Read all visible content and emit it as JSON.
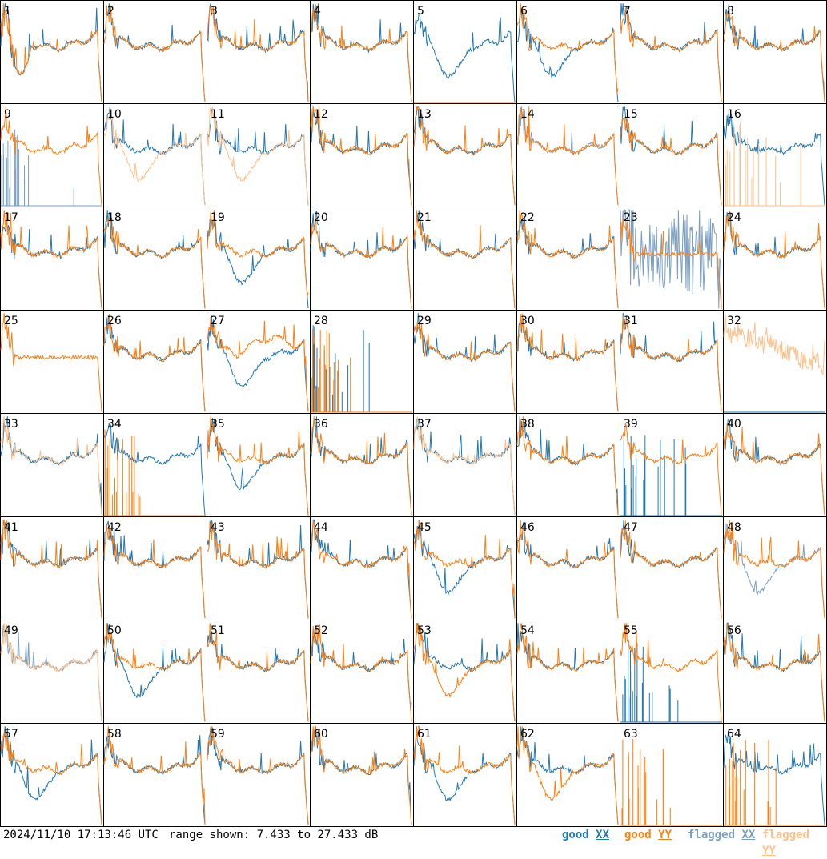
{
  "chart_data": {
    "type": "line",
    "panel_ids": [
      1,
      2,
      3,
      4,
      5,
      6,
      7,
      8,
      9,
      10,
      11,
      12,
      13,
      14,
      15,
      16,
      17,
      18,
      19,
      20,
      21,
      22,
      23,
      24,
      25,
      26,
      27,
      28,
      29,
      30,
      31,
      32,
      33,
      34,
      35,
      36,
      37,
      38,
      39,
      40,
      41,
      42,
      43,
      44,
      45,
      46,
      47,
      48,
      49,
      50,
      51,
      52,
      53,
      54,
      55,
      56,
      57,
      58,
      59,
      60,
      61,
      62,
      63,
      64
    ],
    "range_db": [
      7.433,
      27.433
    ],
    "series": [
      {
        "name": "good XX",
        "color": "#1f77b4"
      },
      {
        "name": "good YY",
        "color": "#ff7f0e"
      },
      {
        "name": "flagged XX",
        "color": "#7a9fc0"
      },
      {
        "name": "flagged YY",
        "color": "#ffbf86"
      }
    ],
    "panels": {
      "1": {
        "xx": "good",
        "yy": "good",
        "xx_shape": "dip_early",
        "yy_shape": "dip_early"
      },
      "5": {
        "xx": "good",
        "yy": "good",
        "xx_shape": "dip_mid",
        "yy_shape": "dead"
      },
      "6": {
        "xx": "good",
        "yy": "good",
        "xx_shape": "dip_mid",
        "yy_shape": "normal"
      },
      "9": {
        "xx": "flagged",
        "yy": "good",
        "xx_shape": "dead_spiky",
        "yy_shape": "normal"
      },
      "10": {
        "xx": "good",
        "yy": "flagged",
        "xx_shape": "normal",
        "yy_shape": "dip_mid"
      },
      "11": {
        "xx": "good",
        "yy": "flagged",
        "xx_shape": "normal",
        "yy_shape": "dip_mid"
      },
      "14": {
        "xx": "flagged",
        "yy": "good",
        "xx_shape": "normal",
        "yy_shape": "normal"
      },
      "16": {
        "xx": "good",
        "yy": "flagged",
        "xx_shape": "normal",
        "yy_shape": "dead_spiky"
      },
      "19": {
        "xx": "good",
        "yy": "good",
        "xx_shape": "dip_mid",
        "yy_shape": "normal"
      },
      "23": {
        "xx": "flagged",
        "yy": "good",
        "xx_shape": "noisy",
        "yy_shape": "flat"
      },
      "25": {
        "xx": "good",
        "yy": "good",
        "xx_shape": "hidden",
        "yy_shape": "flat"
      },
      "27": {
        "xx": "good",
        "yy": "good",
        "xx_shape": "dip_mid",
        "yy_shape": "rise_mid"
      },
      "28": {
        "xx": "good",
        "yy": "good",
        "xx_shape": "dead_spiky",
        "yy_shape": "dead_spiky"
      },
      "32": {
        "xx": "good",
        "yy": "flagged",
        "xx_shape": "dead",
        "yy_shape": "noisy_decay"
      },
      "33": {
        "xx": "good",
        "yy": "flagged",
        "xx_shape": "normal",
        "yy_shape": "normal"
      },
      "34": {
        "xx": "good",
        "yy": "good",
        "xx_shape": "normal",
        "yy_shape": "dead_spiky"
      },
      "35": {
        "xx": "good",
        "yy": "good",
        "xx_shape": "dip_mid",
        "yy_shape": "normal"
      },
      "37": {
        "xx": "good",
        "yy": "flagged",
        "xx_shape": "normal",
        "yy_shape": "normal"
      },
      "39": {
        "xx": "good",
        "yy": "good",
        "xx_shape": "dead_spiky",
        "yy_shape": "normal"
      },
      "45": {
        "xx": "good",
        "yy": "good",
        "xx_shape": "dip_mid",
        "yy_shape": "normal"
      },
      "48": {
        "xx": "flagged",
        "yy": "good",
        "xx_shape": "dip_mid",
        "yy_shape": "normal"
      },
      "49": {
        "xx": "flagged",
        "yy": "flagged",
        "xx_shape": "normal",
        "yy_shape": "normal"
      },
      "50": {
        "xx": "good",
        "yy": "good",
        "xx_shape": "dip_mid",
        "yy_shape": "normal"
      },
      "53": {
        "xx": "good",
        "yy": "good",
        "xx_shape": "normal",
        "yy_shape": "dip_mid"
      },
      "55": {
        "xx": "good",
        "yy": "good",
        "xx_shape": "dead_spiky",
        "yy_shape": "normal"
      },
      "57": {
        "xx": "good",
        "yy": "good",
        "xx_shape": "dip_mid",
        "yy_shape": "normal"
      },
      "61": {
        "xx": "good",
        "yy": "good",
        "xx_shape": "dip_mid",
        "yy_shape": "normal"
      },
      "62": {
        "xx": "good",
        "yy": "good",
        "xx_shape": "normal",
        "yy_shape": "dip_mid"
      },
      "63": {
        "xx": "good",
        "yy": "good",
        "xx_shape": "dead",
        "yy_shape": "dead_spiky"
      },
      "64": {
        "xx": "good",
        "yy": "good",
        "xx_shape": "normal",
        "yy_shape": "dead_spiky"
      }
    }
  },
  "footer": {
    "timestamp": "2024/11/10 17:13:46 UTC",
    "range_text": "range shown: 7.433 to 27.433 dB",
    "legend": {
      "good_xx": {
        "word": "good",
        "pol": "XX"
      },
      "good_yy": {
        "word": "good",
        "pol": "YY"
      },
      "flagged_xx": {
        "word": "flagged",
        "pol": "XX"
      },
      "flagged_yy": {
        "word": "flagged",
        "pol": "YY"
      }
    }
  }
}
